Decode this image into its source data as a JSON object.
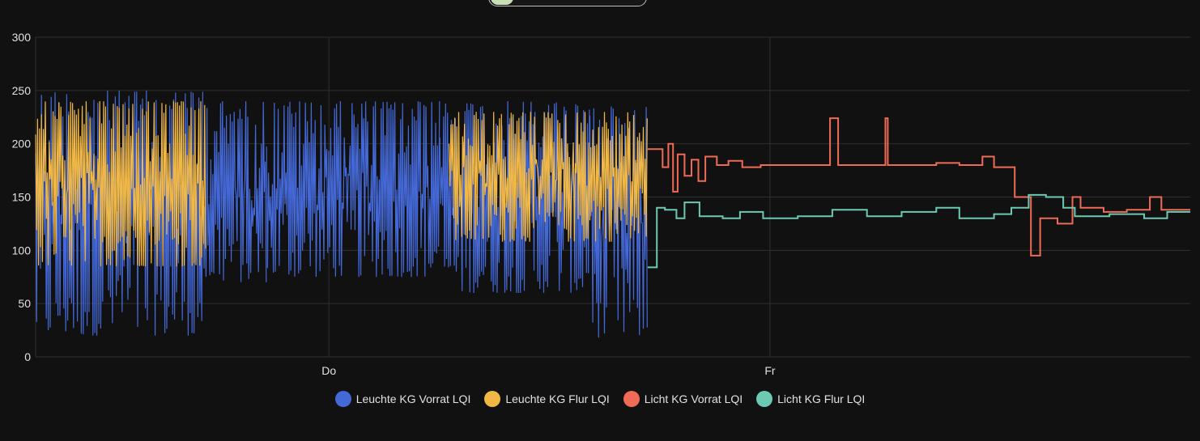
{
  "chart_data": {
    "type": "line",
    "title": "",
    "xlabel": "",
    "ylabel": "",
    "ylim": [
      0,
      300
    ],
    "yticks": [
      0,
      50,
      100,
      150,
      200,
      250,
      300
    ],
    "xticks": [
      {
        "label": "Do",
        "t": 0.254
      },
      {
        "label": "Fr",
        "t": 0.636
      }
    ],
    "grid": true,
    "legend_position": "bottom",
    "series": [
      {
        "name": "Leuchte KG Vorrat LQI",
        "color": "#4468d6",
        "style": "noisy_band",
        "t_range": [
          0.0,
          0.53
        ],
        "segments": [
          {
            "t0": 0.0,
            "t1": 0.145,
            "low": 20,
            "high": 250
          },
          {
            "t0": 0.145,
            "t1": 0.2,
            "low": 70,
            "high": 240
          },
          {
            "t0": 0.2,
            "t1": 0.35,
            "low": 75,
            "high": 240
          },
          {
            "t0": 0.35,
            "t1": 0.48,
            "low": 60,
            "high": 240
          },
          {
            "t0": 0.48,
            "t1": 0.53,
            "low": 18,
            "high": 235
          }
        ]
      },
      {
        "name": "Leuchte KG Flur LQI",
        "color": "#f2b845",
        "style": "noisy_band",
        "segments": [
          {
            "t0": 0.0,
            "t1": 0.148,
            "low": 85,
            "high": 240
          },
          {
            "t0": 0.358,
            "t1": 0.53,
            "low": 108,
            "high": 230
          }
        ]
      },
      {
        "name": "Licht KG Vorrat LQI",
        "color": "#ee6b55",
        "style": "step",
        "points": [
          [
            0.53,
            195
          ],
          [
            0.543,
            178
          ],
          [
            0.548,
            200
          ],
          [
            0.552,
            155
          ],
          [
            0.556,
            190
          ],
          [
            0.562,
            170
          ],
          [
            0.568,
            185
          ],
          [
            0.574,
            165
          ],
          [
            0.58,
            188
          ],
          [
            0.59,
            180
          ],
          [
            0.6,
            184
          ],
          [
            0.612,
            178
          ],
          [
            0.628,
            180
          ],
          [
            0.66,
            180
          ],
          [
            0.687,
            180
          ],
          [
            0.688,
            224
          ],
          [
            0.695,
            180
          ],
          [
            0.735,
            180
          ],
          [
            0.736,
            224
          ],
          [
            0.738,
            180
          ],
          [
            0.78,
            182
          ],
          [
            0.8,
            180
          ],
          [
            0.82,
            188
          ],
          [
            0.83,
            178
          ],
          [
            0.848,
            150
          ],
          [
            0.862,
            95
          ],
          [
            0.87,
            130
          ],
          [
            0.885,
            125
          ],
          [
            0.898,
            150
          ],
          [
            0.905,
            140
          ],
          [
            0.925,
            136
          ],
          [
            0.945,
            138
          ],
          [
            0.965,
            150
          ],
          [
            0.975,
            138
          ],
          [
            1.0,
            138
          ]
        ]
      },
      {
        "name": "Licht KG Flur LQI",
        "color": "#6cc9b2",
        "style": "step",
        "points": [
          [
            0.53,
            84
          ],
          [
            0.538,
            140
          ],
          [
            0.545,
            138
          ],
          [
            0.555,
            130
          ],
          [
            0.562,
            145
          ],
          [
            0.575,
            132
          ],
          [
            0.595,
            130
          ],
          [
            0.61,
            136
          ],
          [
            0.63,
            130
          ],
          [
            0.66,
            132
          ],
          [
            0.69,
            138
          ],
          [
            0.72,
            132
          ],
          [
            0.75,
            136
          ],
          [
            0.78,
            140
          ],
          [
            0.8,
            130
          ],
          [
            0.83,
            134
          ],
          [
            0.845,
            140
          ],
          [
            0.86,
            152
          ],
          [
            0.875,
            150
          ],
          [
            0.89,
            140
          ],
          [
            0.9,
            132
          ],
          [
            0.93,
            134
          ],
          [
            0.96,
            130
          ],
          [
            0.98,
            136
          ],
          [
            1.0,
            136
          ]
        ]
      }
    ]
  }
}
